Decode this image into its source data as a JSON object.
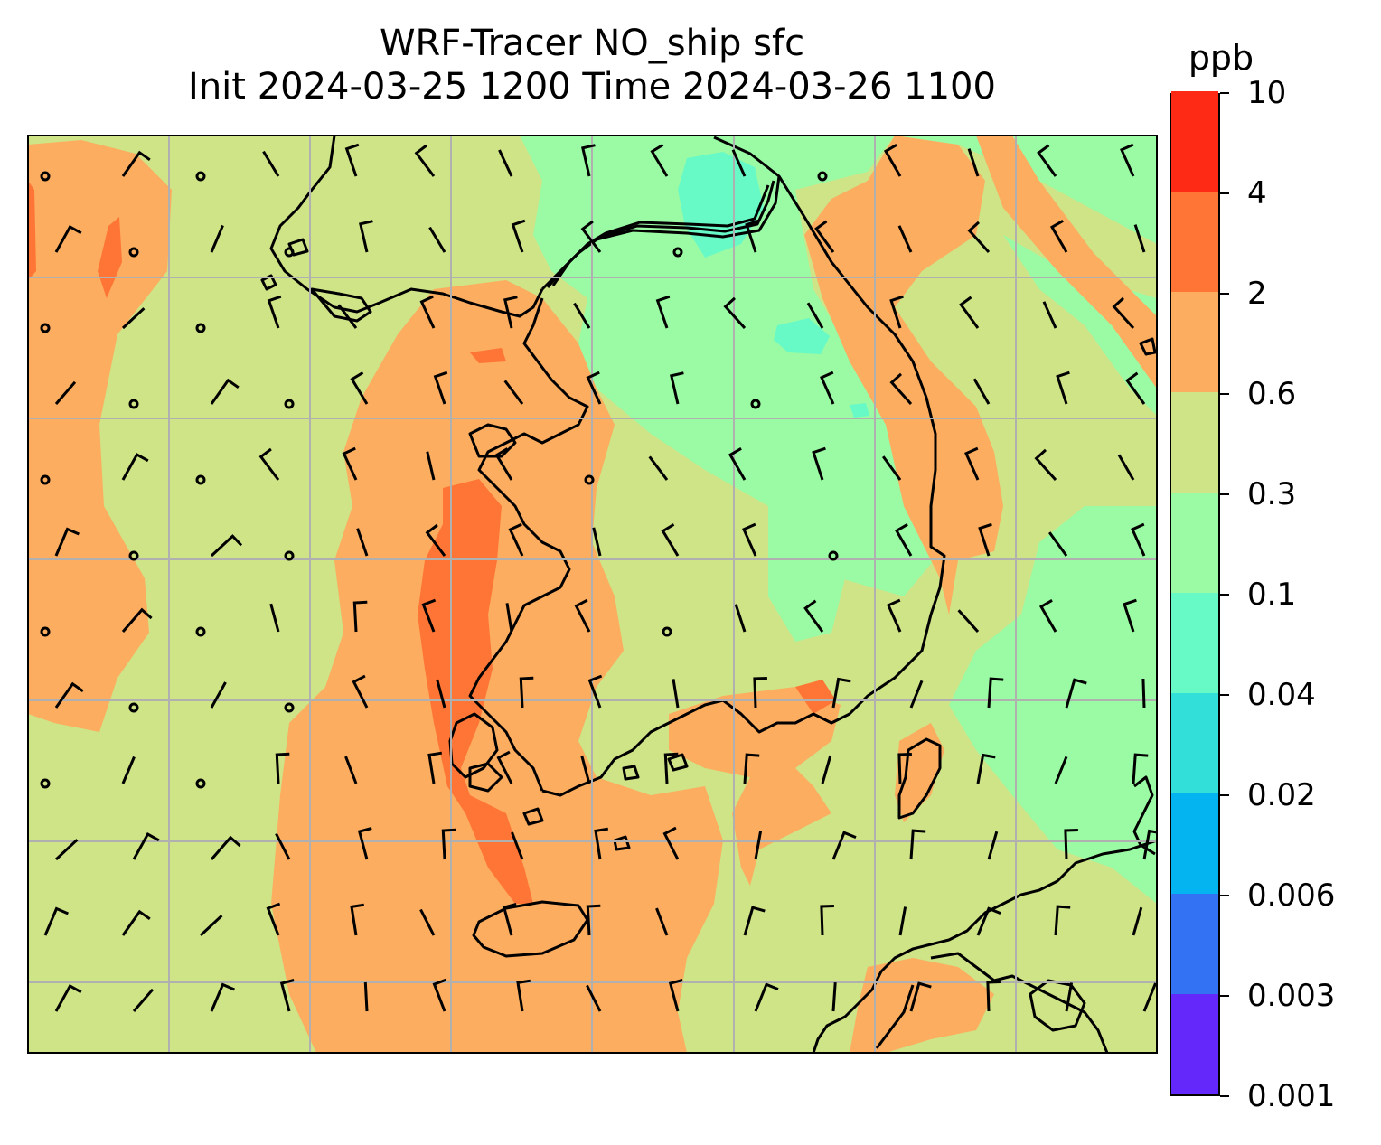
{
  "title": {
    "line1": "WRF-Tracer NO_ship sfc",
    "line2": "Init 2024-03-25 1200 Time 2024-03-26 1100"
  },
  "colorbar": {
    "unit": "ppb",
    "levels": [
      "0.001",
      "0.003",
      "0.006",
      "0.02",
      "0.04",
      "0.1",
      "0.3",
      "0.6",
      "2",
      "4",
      "10"
    ],
    "colors": [
      "#6428fa",
      "#3372f2",
      "#04b4f0",
      "#32dfd9",
      "#67fac6",
      "#9bfba4",
      "#cfe387",
      "#fcad5f",
      "#ff7536",
      "#ff2a16"
    ]
  },
  "map_colors": {
    "background_level": "#cfe387",
    "ocean_band": "#fcad5f",
    "hotspot": "#ff7536",
    "clean_air": "#9bfba4",
    "cleanest": "#67fac6",
    "coastline": "#000000",
    "gridline": "#b0b0b0"
  }
}
